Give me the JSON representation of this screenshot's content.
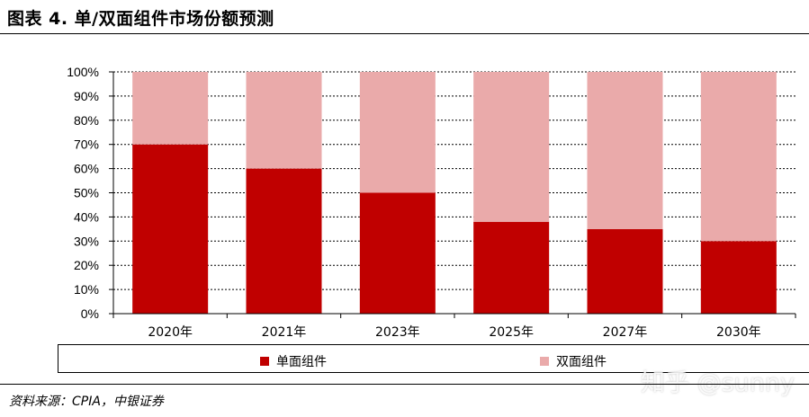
{
  "title": "图表 4. 单/双面组件市场份额预测",
  "source": "资料来源：CPIA，中银证券",
  "watermark": "知乎 @sunny",
  "colors": {
    "single": "#c00000",
    "double": "#eaaaaa",
    "grid": "#000000"
  },
  "chart_data": {
    "type": "bar",
    "stacked": true,
    "categories": [
      "2020年",
      "2021年",
      "2023年",
      "2025年",
      "2027年",
      "2030年"
    ],
    "series": [
      {
        "name": "单面组件",
        "values": [
          70,
          60,
          50,
          38,
          35,
          30
        ]
      },
      {
        "name": "双面组件",
        "values": [
          30,
          40,
          50,
          62,
          65,
          70
        ]
      }
    ],
    "ylim": [
      0,
      100
    ],
    "yticks": [
      "0%",
      "10%",
      "20%",
      "30%",
      "40%",
      "50%",
      "60%",
      "70%",
      "80%",
      "90%",
      "100%"
    ],
    "grid": true,
    "legend": "bottom"
  }
}
